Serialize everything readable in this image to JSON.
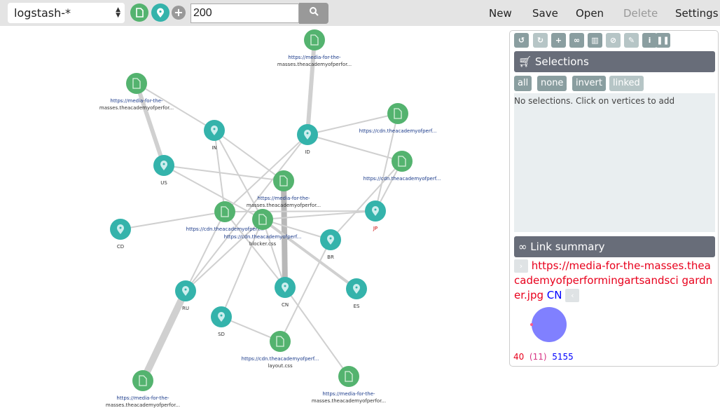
{
  "toolbar": {
    "index": "logstash-*",
    "query": "200",
    "menu": [
      "New",
      "Save",
      "Open",
      "Delete",
      "Settings"
    ]
  },
  "panel": {
    "tools": [
      "undo-icon",
      "redo-icon",
      "plus-icon",
      "link-icon",
      "trash-icon",
      "ban-icon",
      "paintbrush-icon",
      "info-icon",
      "pause-icon"
    ],
    "selections_title": "Selections",
    "sel_buttons": [
      "all",
      "none",
      "invert",
      "linked"
    ],
    "no_selections": "No selections. Click on vertices to add",
    "link_title": "Link summary",
    "link_source": "https://media-for-the-masses.theacademyofperformingartsandscience.org/uploads/gardner.jpg",
    "link_source_visible": "https://media-for-the-masses.theacademyofperformingartsandsci gardner.jpg",
    "link_target": "CN",
    "counts": {
      "source": "40",
      "overlap": "(11)",
      "target": "5155"
    },
    "colors": {
      "source": "#e8001c",
      "overlap": "#d63384",
      "target": "#0000ff",
      "pie": "#8080ff"
    }
  },
  "graph": {
    "colors": {
      "doc": "#54b36f",
      "geo": "#34b3ab",
      "edge": "#d0d0d0"
    },
    "nodes": [
      {
        "type": "doc",
        "label": [
          "https://media-for-the-",
          "masses.theacademyofperfor..."
        ]
      },
      {
        "type": "doc",
        "label": [
          "https://media-for-the-",
          "masses.theacademyofperfor..."
        ]
      },
      {
        "type": "doc",
        "label": [
          "https://cdn.theacademyofperf..."
        ]
      },
      {
        "type": "doc",
        "label": [
          "https://cdn.theacademyofperf..."
        ]
      },
      {
        "type": "doc",
        "label": [
          "https://media-for-the-",
          "masses.theacademyofperfor..."
        ]
      },
      {
        "type": "doc",
        "label": [
          "https://cdn.theacademyofperf..."
        ]
      },
      {
        "type": "doc",
        "label": [
          "https://cdn.theacademyofperf...",
          "blocker.css"
        ]
      },
      {
        "type": "doc",
        "label": [
          "https://cdn.theacademyofperf...",
          "layout.css"
        ]
      },
      {
        "type": "doc",
        "label": [
          "https://media-for-the-",
          "masses.theacademyofperfor..."
        ]
      },
      {
        "type": "doc",
        "label": [
          "https://media-for-the-",
          "masses.theacademyofperfor..."
        ]
      },
      {
        "type": "geo",
        "label": [
          "IN"
        ]
      },
      {
        "type": "geo",
        "label": [
          "ID"
        ]
      },
      {
        "type": "geo",
        "label": [
          "US"
        ]
      },
      {
        "type": "geo",
        "label": [
          "JP"
        ]
      },
      {
        "type": "geo",
        "label": [
          "CD"
        ]
      },
      {
        "type": "geo",
        "label": [
          "BR"
        ]
      },
      {
        "type": "geo",
        "label": [
          "RU"
        ]
      },
      {
        "type": "geo",
        "label": [
          "CN"
        ]
      },
      {
        "type": "geo",
        "label": [
          "ES"
        ]
      },
      {
        "type": "geo",
        "label": [
          "SD"
        ]
      }
    ],
    "edges": [
      [
        0,
        11,
        3
      ],
      [
        1,
        10,
        1
      ],
      [
        1,
        12,
        3
      ],
      [
        2,
        11,
        1
      ],
      [
        2,
        13,
        1
      ],
      [
        3,
        11,
        1
      ],
      [
        3,
        13,
        1
      ],
      [
        3,
        15,
        1
      ],
      [
        10,
        4,
        1
      ],
      [
        10,
        6,
        1
      ],
      [
        10,
        5,
        1
      ],
      [
        11,
        5,
        1
      ],
      [
        11,
        16,
        1
      ],
      [
        12,
        6,
        1
      ],
      [
        14,
        5,
        1
      ],
      [
        16,
        5,
        1
      ],
      [
        16,
        6,
        1
      ],
      [
        16,
        8,
        5
      ],
      [
        17,
        4,
        4
      ],
      [
        17,
        6,
        1
      ],
      [
        17,
        5,
        1
      ],
      [
        18,
        6,
        2
      ],
      [
        15,
        6,
        1
      ],
      [
        15,
        7,
        1
      ],
      [
        19,
        7,
        1
      ],
      [
        19,
        6,
        1
      ],
      [
        17,
        9,
        1
      ],
      [
        5,
        13,
        1
      ],
      [
        6,
        13,
        1
      ],
      [
        12,
        4,
        1
      ]
    ]
  }
}
